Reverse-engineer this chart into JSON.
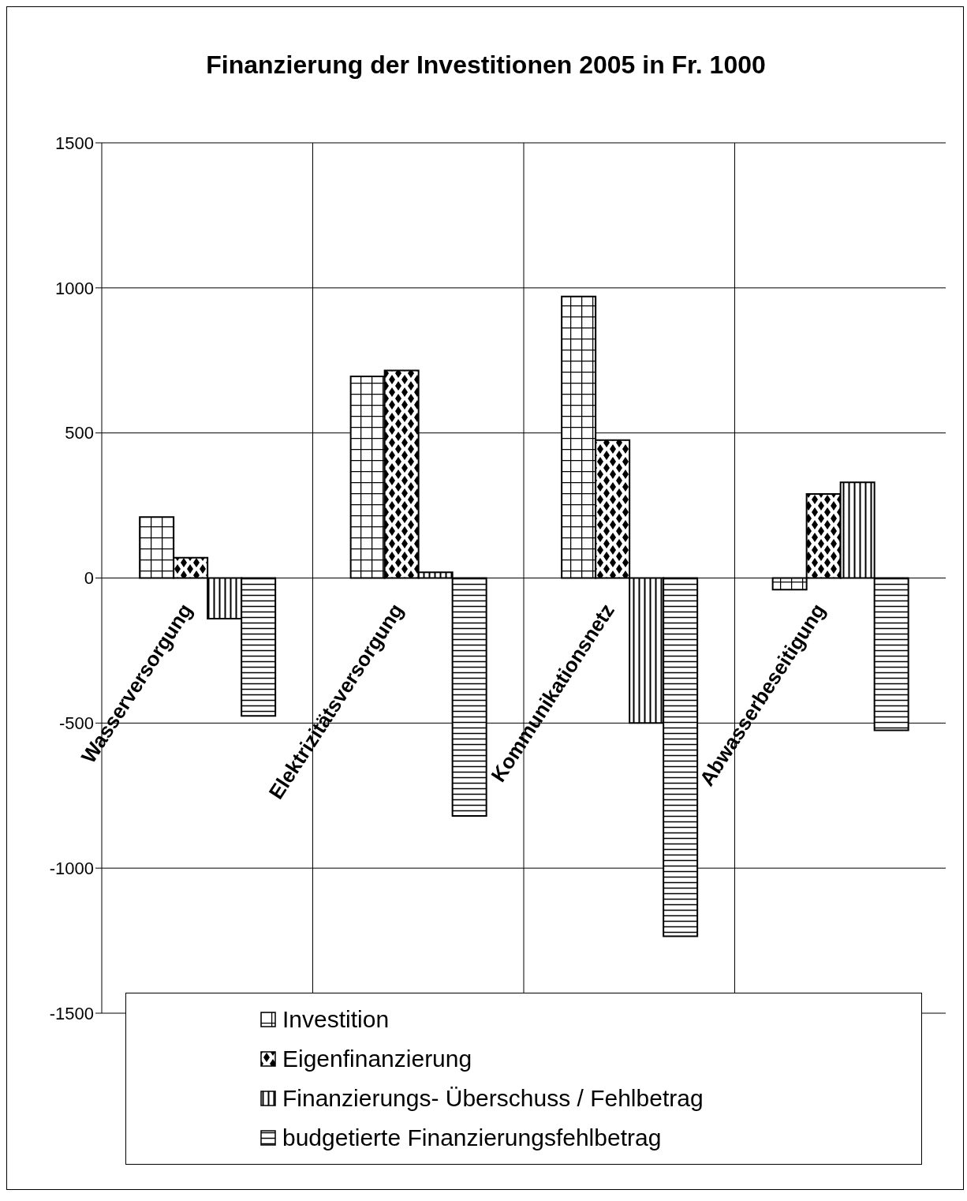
{
  "chart_data": {
    "type": "bar",
    "title": "Finanzierung der Investitionen 2005 in Fr. 1000",
    "categories": [
      "Wasserversorgung",
      "Elektrizitätsversorgung",
      "Kommunikationsnetz",
      "Abwasserbeseitigung"
    ],
    "series": [
      {
        "name": "Investition",
        "color": "#000000",
        "values": [
          210,
          695,
          970,
          -40
        ]
      },
      {
        "name": "Eigenfinanzierung",
        "color": "#000000",
        "values": [
          70,
          715,
          475,
          290
        ]
      },
      {
        "name": "Finanzierungs- Überschuss / Fehlbetrag",
        "color": "#000000",
        "values": [
          -140,
          20,
          -500,
          330
        ]
      },
      {
        "name": "budgetierte Finanzierungsfehlbetrag",
        "color": "#000000",
        "values": [
          -475,
          -820,
          -1235,
          -525
        ]
      }
    ],
    "ylim": [
      -1500,
      1500
    ],
    "yticks": [
      -1500,
      -1000,
      -500,
      0,
      500,
      1000,
      1500
    ],
    "grid": true,
    "legend": "bottom"
  }
}
